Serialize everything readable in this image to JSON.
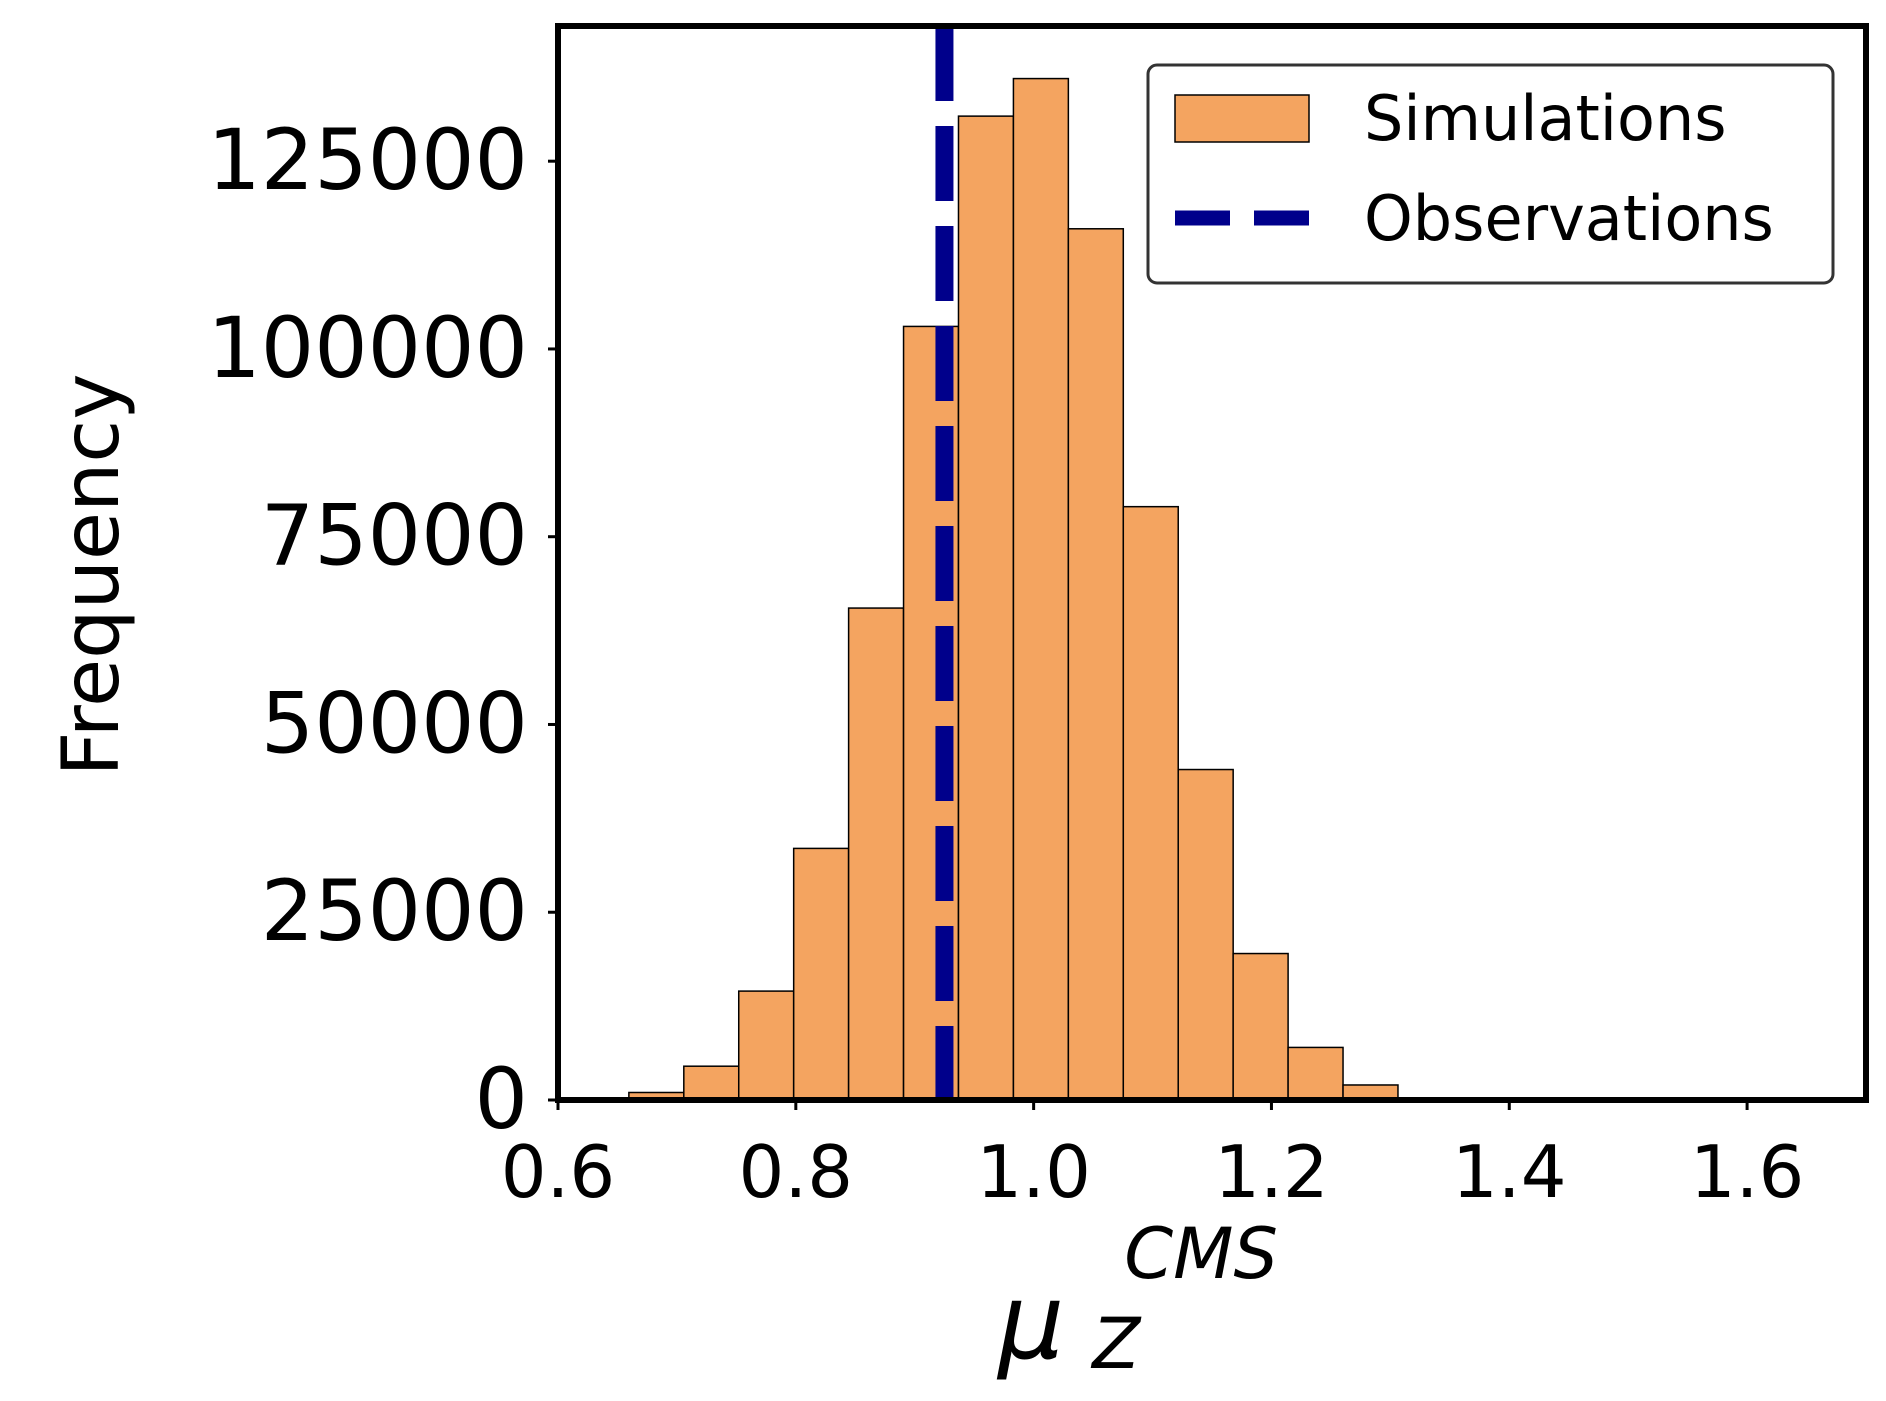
{
  "chart_data": {
    "type": "histogram",
    "title": "",
    "ylabel": "Frequency",
    "xlabel": {
      "base": "μ",
      "subscript": "Z",
      "superscript": "CMS"
    },
    "xlim": [
      0.6,
      1.7
    ],
    "ylim": [
      0,
      143000
    ],
    "xticks": [
      0.6,
      0.8,
      1.0,
      1.2,
      1.4,
      1.6
    ],
    "xtick_labels": [
      "0.6",
      "0.8",
      "1.0",
      "1.2",
      "1.4",
      "1.6"
    ],
    "yticks": [
      0,
      25000,
      50000,
      75000,
      100000,
      125000
    ],
    "ytick_labels": [
      "0",
      "25000",
      "50000",
      "75000",
      "100000",
      "125000"
    ],
    "bins": [
      {
        "left": 0.6596,
        "right": 0.7058,
        "count": 1000
      },
      {
        "left": 0.7058,
        "right": 0.752,
        "count": 4500
      },
      {
        "left": 0.752,
        "right": 0.7982,
        "count": 14500
      },
      {
        "left": 0.7982,
        "right": 0.8444,
        "count": 33500
      },
      {
        "left": 0.8444,
        "right": 0.8906,
        "count": 65500
      },
      {
        "left": 0.8906,
        "right": 0.9368,
        "count": 103000
      },
      {
        "left": 0.9368,
        "right": 0.983,
        "count": 131000
      },
      {
        "left": 0.983,
        "right": 1.0292,
        "count": 136000
      },
      {
        "left": 1.0292,
        "right": 1.0754,
        "count": 116000
      },
      {
        "left": 1.0754,
        "right": 1.1216,
        "count": 79000
      },
      {
        "left": 1.1216,
        "right": 1.1678,
        "count": 44000
      },
      {
        "left": 1.1678,
        "right": 1.214,
        "count": 19500
      },
      {
        "left": 1.214,
        "right": 1.2602,
        "count": 7000
      },
      {
        "left": 1.2602,
        "right": 1.3064,
        "count": 2000
      }
    ],
    "observation_x": 0.925,
    "legend": {
      "position": "top-right",
      "entries": [
        {
          "label": "Simulations",
          "kind": "patch"
        },
        {
          "label": "Observations",
          "kind": "dashed-line"
        }
      ]
    },
    "colors": {
      "histogram_fill": "#f4a460",
      "histogram_edge": "#000000",
      "observation_line": "#00008b",
      "axes": "#000000",
      "legend_edge": "#333333"
    }
  }
}
